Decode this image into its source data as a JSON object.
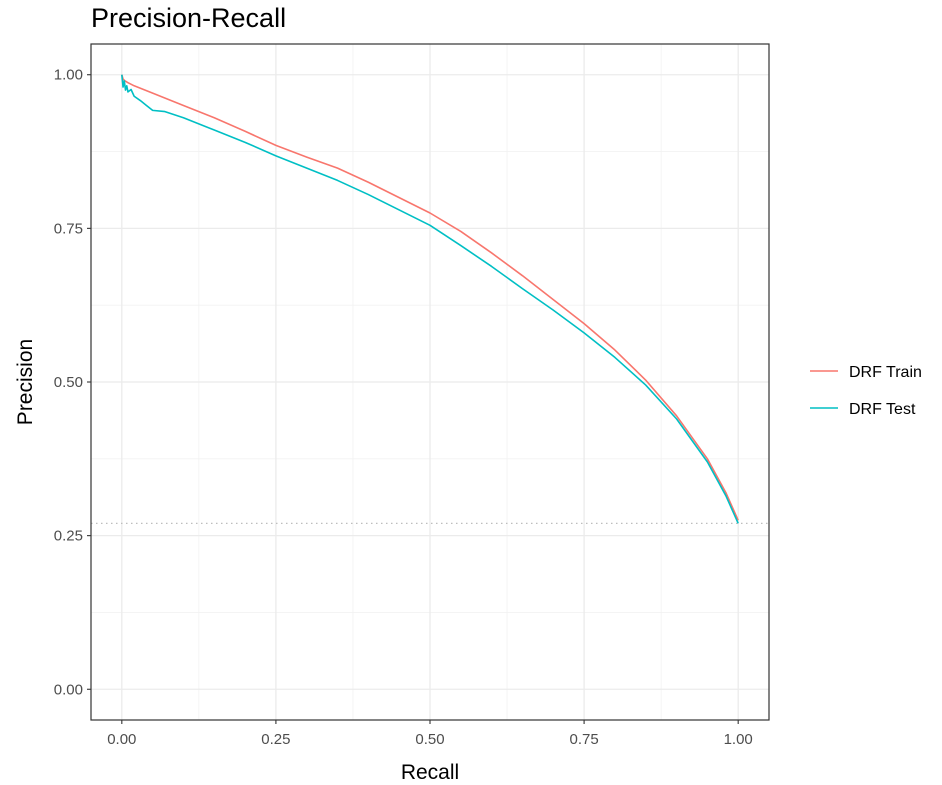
{
  "chart_data": {
    "type": "line",
    "title": "Precision-Recall",
    "xlabel": "Recall",
    "ylabel": "Precision",
    "xlim": [
      -0.05,
      1.05
    ],
    "ylim": [
      -0.05,
      1.05
    ],
    "x_ticks": [
      0,
      0.25,
      0.5,
      0.75,
      1
    ],
    "x_tick_labels": [
      "0.00",
      "0.25",
      "0.50",
      "0.75",
      "1.00"
    ],
    "y_ticks": [
      0,
      0.25,
      0.5,
      0.75,
      1
    ],
    "y_tick_labels": [
      "0.00",
      "0.25",
      "0.50",
      "0.75",
      "1.00"
    ],
    "grid": true,
    "legend_position": "right",
    "baseline": {
      "y": 0.27,
      "style": "dotted",
      "color": "#bdbdbd"
    },
    "series": [
      {
        "name": "DRF Train",
        "color": "#F8766D",
        "x": [
          0,
          0.002,
          0.005,
          0.01,
          0.02,
          0.05,
          0.1,
          0.15,
          0.2,
          0.25,
          0.3,
          0.35,
          0.4,
          0.45,
          0.5,
          0.55,
          0.6,
          0.65,
          0.7,
          0.75,
          0.8,
          0.85,
          0.9,
          0.95,
          0.98,
          1.0
        ],
        "y": [
          1.0,
          0.993,
          0.99,
          0.987,
          0.982,
          0.97,
          0.95,
          0.93,
          0.908,
          0.885,
          0.866,
          0.848,
          0.825,
          0.8,
          0.775,
          0.745,
          0.71,
          0.673,
          0.634,
          0.595,
          0.552,
          0.503,
          0.445,
          0.375,
          0.32,
          0.275
        ]
      },
      {
        "name": "DRF Test",
        "color": "#00BFC4",
        "x": [
          0,
          0.002,
          0.004,
          0.006,
          0.008,
          0.01,
          0.015,
          0.02,
          0.03,
          0.04,
          0.05,
          0.07,
          0.1,
          0.15,
          0.2,
          0.25,
          0.3,
          0.35,
          0.4,
          0.45,
          0.5,
          0.55,
          0.6,
          0.65,
          0.7,
          0.75,
          0.8,
          0.85,
          0.9,
          0.95,
          0.98,
          1.0
        ],
        "y": [
          1.0,
          0.98,
          0.99,
          0.975,
          0.982,
          0.972,
          0.976,
          0.965,
          0.958,
          0.95,
          0.942,
          0.94,
          0.93,
          0.91,
          0.89,
          0.868,
          0.848,
          0.828,
          0.805,
          0.78,
          0.755,
          0.722,
          0.688,
          0.652,
          0.617,
          0.58,
          0.54,
          0.495,
          0.44,
          0.37,
          0.315,
          0.27
        ]
      }
    ]
  }
}
